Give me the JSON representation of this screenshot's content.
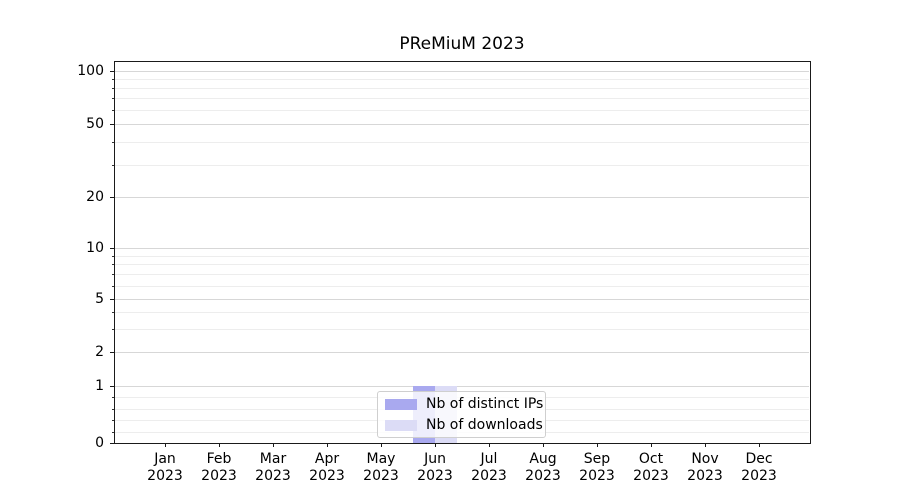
{
  "chart_data": {
    "type": "bar",
    "title": "PReMiuM 2023",
    "categories": [
      "Jan 2023",
      "Feb 2023",
      "Mar 2023",
      "Apr 2023",
      "May 2023",
      "Jun 2023",
      "Jul 2023",
      "Aug 2023",
      "Sep 2023",
      "Oct 2023",
      "Nov 2023",
      "Dec 2023"
    ],
    "month_labels": [
      "Jan",
      "Feb",
      "Mar",
      "Apr",
      "May",
      "Jun",
      "Jul",
      "Aug",
      "Sep",
      "Oct",
      "Nov",
      "Dec"
    ],
    "year_label": "2023",
    "series": [
      {
        "name": "Nb of distinct IPs",
        "color": "#a9a9ef",
        "values": [
          0,
          0,
          0,
          0,
          0,
          1,
          0,
          0,
          0,
          0,
          0,
          0
        ]
      },
      {
        "name": "Nb of downloads",
        "color": "#dcdcf6",
        "values": [
          0,
          0,
          0,
          0,
          0,
          1,
          0,
          0,
          0,
          0,
          0,
          0
        ]
      }
    ],
    "xlabel": "",
    "ylabel": "",
    "yscale": "symlog",
    "ylim": [
      0,
      115
    ],
    "y_major_ticks": [
      0,
      1,
      2,
      5,
      10,
      20,
      50,
      100
    ],
    "y_minor_ticks": [
      0.2,
      0.4,
      0.6,
      0.8,
      3,
      4,
      6,
      7,
      8,
      9,
      30,
      40,
      60,
      70,
      80,
      90
    ],
    "grid": "horizontal, major and minor gridlines",
    "legend_position": "lower center, inside axes",
    "background_color": "#ffffff",
    "spine_color": "#1a1a1a"
  }
}
